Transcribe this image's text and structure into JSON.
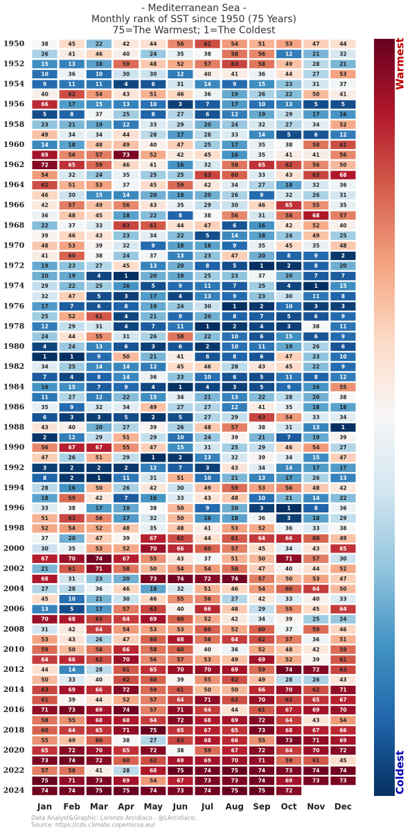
{
  "chart_data": {
    "type": "heatmap",
    "title": [
      "- Mediterranean Sea -",
      "Monthly rank of SST since 1950 (75 Years)",
      "75=The Warmest; 1=The Coldest"
    ],
    "x": [
      "Jan",
      "Feb",
      "Mar",
      "Apr",
      "May",
      "Jun",
      "Jul",
      "Aug",
      "Sep",
      "Oct",
      "Nov",
      "Dec"
    ],
    "y": [
      1950,
      null,
      1952,
      null,
      1954,
      null,
      1956,
      null,
      1958,
      null,
      1960,
      null,
      1962,
      null,
      1964,
      null,
      1966,
      null,
      1968,
      null,
      1970,
      null,
      1972,
      null,
      1974,
      null,
      1976,
      null,
      1978,
      null,
      1980,
      null,
      1982,
      null,
      1984,
      null,
      1986,
      null,
      1988,
      null,
      1990,
      null,
      1992,
      null,
      1994,
      null,
      1996,
      null,
      1998,
      null,
      2000,
      null,
      2002,
      null,
      2004,
      null,
      2006,
      null,
      2008,
      null,
      2010,
      null,
      2012,
      null,
      2014,
      null,
      2016,
      null,
      2018,
      null,
      2020,
      null,
      2022,
      null,
      2024
    ],
    "values": [
      [
        38,
        45,
        22,
        42,
        44,
        56,
        62,
        54,
        51,
        53,
        47,
        44
      ],
      [
        26,
        41,
        46,
        40,
        24,
        35,
        38,
        58,
        56,
        12,
        21,
        32
      ],
      [
        15,
        13,
        18,
        59,
        48,
        52,
        57,
        63,
        58,
        49,
        28,
        21
      ],
      [
        10,
        36,
        10,
        30,
        30,
        12,
        40,
        41,
        36,
        44,
        27,
        53
      ],
      [
        9,
        11,
        11,
        4,
        6,
        31,
        14,
        9,
        15,
        23,
        31,
        37
      ],
      [
        40,
        62,
        54,
        43,
        51,
        46,
        36,
        19,
        26,
        22,
        50,
        41
      ],
      [
        66,
        17,
        15,
        13,
        10,
        3,
        7,
        17,
        10,
        13,
        5,
        5
      ],
      [
        5,
        8,
        37,
        25,
        8,
        27,
        6,
        12,
        19,
        29,
        17,
        16
      ],
      [
        23,
        21,
        19,
        12,
        33,
        29,
        20,
        24,
        32,
        27,
        34,
        52
      ],
      [
        49,
        34,
        34,
        44,
        28,
        17,
        28,
        33,
        14,
        5,
        6,
        12
      ],
      [
        14,
        18,
        48,
        49,
        40,
        47,
        25,
        17,
        35,
        38,
        58,
        62
      ],
      [
        69,
        56,
        57,
        73,
        52,
        42,
        45,
        16,
        35,
        41,
        41,
        56
      ],
      [
        72,
        65,
        59,
        46,
        41,
        16,
        32,
        58,
        65,
        62,
        56,
        50
      ],
      [
        54,
        32,
        24,
        35,
        25,
        25,
        63,
        60,
        33,
        43,
        63,
        68
      ],
      [
        62,
        51,
        53,
        37,
        45,
        59,
        42,
        34,
        27,
        18,
        32,
        36
      ],
      [
        46,
        30,
        15,
        14,
        20,
        18,
        20,
        26,
        9,
        32,
        26,
        31
      ],
      [
        42,
        57,
        49,
        56,
        43,
        35,
        29,
        30,
        46,
        65,
        55,
        35
      ],
      [
        36,
        48,
        45,
        18,
        22,
        8,
        38,
        56,
        31,
        58,
        68,
        57
      ],
      [
        22,
        37,
        33,
        63,
        61,
        44,
        47,
        6,
        16,
        42,
        52,
        40
      ],
      [
        39,
        46,
        43,
        23,
        34,
        22,
        5,
        14,
        18,
        24,
        49,
        25
      ],
      [
        48,
        53,
        39,
        32,
        9,
        18,
        18,
        9,
        35,
        45,
        35,
        48
      ],
      [
        41,
        60,
        38,
        24,
        37,
        13,
        23,
        47,
        20,
        8,
        9,
        2
      ],
      [
        19,
        23,
        27,
        45,
        13,
        20,
        8,
        5,
        1,
        2,
        8,
        20
      ],
      [
        20,
        19,
        4,
        1,
        20,
        19,
        25,
        23,
        37,
        20,
        7,
        7
      ],
      [
        29,
        22,
        25,
        16,
        5,
        9,
        11,
        7,
        25,
        4,
        1,
        15
      ],
      [
        32,
        47,
        5,
        3,
        17,
        4,
        13,
        9,
        23,
        30,
        11,
        8
      ],
      [
        17,
        7,
        6,
        8,
        19,
        24,
        30,
        1,
        2,
        10,
        3,
        3
      ],
      [
        25,
        52,
        61,
        4,
        21,
        9,
        20,
        8,
        7,
        5,
        6,
        9
      ],
      [
        12,
        29,
        31,
        4,
        7,
        11,
        1,
        2,
        4,
        3,
        38,
        11
      ],
      [
        24,
        44,
        55,
        31,
        26,
        58,
        22,
        10,
        6,
        15,
        6,
        9
      ],
      [
        4,
        24,
        13,
        6,
        3,
        6,
        2,
        10,
        11,
        19,
        26,
        6
      ],
      [
        1,
        1,
        9,
        50,
        21,
        41,
        6,
        8,
        6,
        47,
        23,
        10
      ],
      [
        34,
        25,
        14,
        14,
        12,
        45,
        46,
        28,
        43,
        45,
        22,
        9
      ],
      [
        7,
        4,
        8,
        14,
        36,
        23,
        10,
        6,
        5,
        11,
        8,
        12
      ],
      [
        16,
        15,
        7,
        9,
        4,
        1,
        4,
        3,
        5,
        9,
        16,
        55
      ],
      [
        11,
        27,
        12,
        22,
        15,
        34,
        21,
        13,
        22,
        28,
        20,
        38
      ],
      [
        35,
        9,
        32,
        34,
        49,
        27,
        27,
        12,
        41,
        35,
        18,
        18
      ],
      [
        6,
        3,
        3,
        5,
        2,
        5,
        27,
        29,
        63,
        54,
        33,
        34
      ],
      [
        43,
        40,
        20,
        27,
        39,
        26,
        48,
        57,
        38,
        31,
        13,
        1
      ],
      [
        2,
        12,
        29,
        51,
        29,
        10,
        24,
        39,
        21,
        7,
        19,
        39
      ],
      [
        56,
        67,
        67,
        55,
        47,
        15,
        31,
        25,
        29,
        46,
        54,
        27
      ],
      [
        47,
        26,
        51,
        29,
        1,
        2,
        13,
        32,
        39,
        34,
        15,
        47
      ],
      [
        3,
        2,
        2,
        2,
        12,
        7,
        3,
        43,
        34,
        14,
        17,
        17
      ],
      [
        8,
        2,
        1,
        11,
        31,
        51,
        10,
        21,
        13,
        17,
        26,
        13
      ],
      [
        28,
        16,
        50,
        26,
        42,
        30,
        49,
        59,
        53,
        56,
        48,
        42
      ],
      [
        18,
        59,
        42,
        7,
        16,
        33,
        43,
        48,
        10,
        21,
        14,
        22
      ],
      [
        33,
        38,
        17,
        19,
        38,
        50,
        9,
        20,
        3,
        1,
        8,
        36
      ],
      [
        51,
        63,
        56,
        17,
        32,
        50,
        16,
        18,
        36,
        3,
        18,
        29
      ],
      [
        52,
        54,
        52,
        48,
        35,
        48,
        41,
        53,
        52,
        36,
        33,
        38
      ],
      [
        37,
        20,
        47,
        39,
        67,
        62,
        44,
        61,
        64,
        66,
        60,
        49
      ],
      [
        30,
        35,
        53,
        52,
        70,
        66,
        60,
        57,
        45,
        34,
        43,
        65
      ],
      [
        67,
        70,
        74,
        67,
        55,
        43,
        37,
        51,
        50,
        71,
        57,
        30
      ],
      [
        21,
        61,
        71,
        58,
        50,
        54,
        54,
        58,
        47,
        40,
        44,
        52
      ],
      [
        68,
        31,
        23,
        20,
        73,
        74,
        72,
        74,
        57,
        50,
        53,
        47
      ],
      [
        27,
        28,
        36,
        46,
        18,
        32,
        51,
        46,
        54,
        60,
        64,
        50
      ],
      [
        45,
        10,
        21,
        30,
        46,
        55,
        56,
        27,
        42,
        33,
        40,
        33
      ],
      [
        13,
        5,
        17,
        57,
        63,
        40,
        66,
        48,
        29,
        55,
        45,
        64
      ],
      [
        70,
        68,
        63,
        64,
        69,
        60,
        52,
        42,
        34,
        39,
        25,
        24
      ],
      [
        31,
        42,
        64,
        54,
        53,
        53,
        60,
        52,
        60,
        37,
        59,
        46
      ],
      [
        53,
        43,
        26,
        47,
        60,
        68,
        58,
        64,
        62,
        57,
        36,
        51
      ],
      [
        59,
        50,
        58,
        66,
        58,
        60,
        40,
        36,
        52,
        48,
        42,
        59
      ],
      [
        64,
        66,
        62,
        70,
        56,
        57,
        53,
        49,
        69,
        52,
        39,
        61
      ],
      [
        44,
        14,
        28,
        61,
        65,
        70,
        70,
        69,
        59,
        74,
        72,
        63
      ],
      [
        50,
        33,
        40,
        62,
        60,
        39,
        55,
        62,
        49,
        28,
        26,
        43
      ],
      [
        63,
        69,
        66,
        72,
        59,
        61,
        50,
        50,
        66,
        70,
        62,
        71
      ],
      [
        61,
        39,
        44,
        52,
        57,
        64,
        71,
        62,
        70,
        63,
        65,
        67
      ],
      [
        71,
        73,
        69,
        74,
        57,
        71,
        64,
        44,
        61,
        67,
        69,
        70
      ],
      [
        58,
        55,
        68,
        68,
        64,
        72,
        68,
        69,
        72,
        64,
        43,
        54
      ],
      [
        60,
        64,
        65,
        71,
        75,
        65,
        67,
        65,
        73,
        68,
        67,
        66
      ],
      [
        55,
        49,
        60,
        38,
        27,
        63,
        68,
        66,
        55,
        73,
        71,
        69
      ],
      [
        65,
        72,
        70,
        65,
        72,
        38,
        59,
        67,
        72,
        64,
        70,
        72
      ],
      [
        73,
        74,
        72,
        60,
        62,
        69,
        69,
        70,
        71,
        59,
        61,
        45
      ],
      [
        57,
        58,
        41,
        28,
        68,
        75,
        74,
        75,
        74,
        73,
        74,
        74
      ],
      [
        75,
        71,
        73,
        69,
        54,
        67,
        73,
        73,
        74,
        69,
        73,
        73
      ],
      [
        74,
        74,
        75,
        75,
        74,
        73,
        74,
        75,
        75,
        72,
        null,
        null
      ]
    ],
    "zlim": [
      1,
      75
    ],
    "colorscale": [
      "#053061",
      "#2166ac",
      "#4393c3",
      "#92c5de",
      "#d1e5f0",
      "#f7f7f7",
      "#fddbc7",
      "#f4a582",
      "#d6604d",
      "#b2182b",
      "#67001f"
    ],
    "colorbar_labels": {
      "top": "Warmest",
      "bottom": "Coldest"
    },
    "footer": [
      "Data Analyst&Graphic: Lorenzo Arcidiaco - @LArcidiaco;",
      "Source: https://cds.climate.copernicus.eu/"
    ]
  }
}
